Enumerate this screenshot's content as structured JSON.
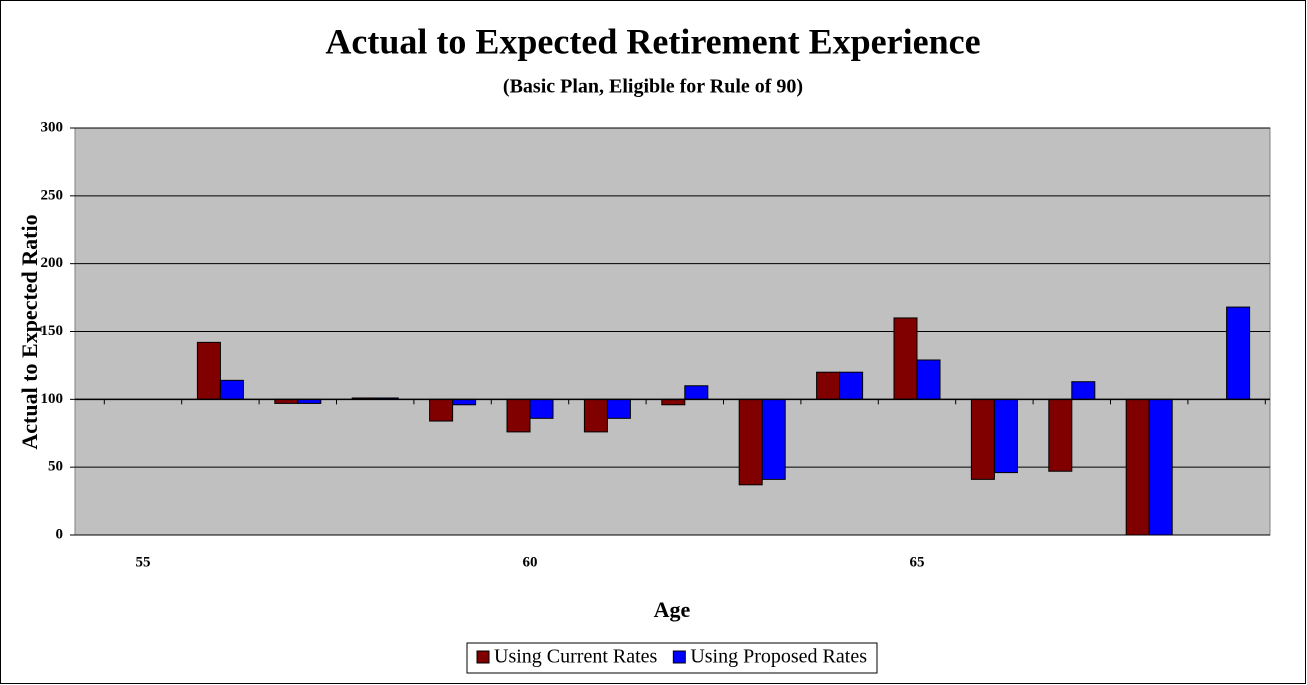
{
  "chart_data": {
    "type": "bar",
    "title": "Actual to Expected Retirement Experience",
    "subtitle": "(Basic Plan, Eligible for Rule of 90)",
    "x_label": "Age",
    "y_label": "Actual to Expected Ratio",
    "categories": [
      "55",
      null,
      null,
      null,
      null,
      "60",
      null,
      null,
      null,
      null,
      "65",
      null,
      null,
      null,
      null
    ],
    "series": [
      {
        "name": "Using Current Rates",
        "color": "#800000",
        "values": [
          null,
          142,
          97,
          101,
          84,
          76,
          76,
          96,
          37,
          120,
          160,
          41,
          47,
          0,
          null
        ]
      },
      {
        "name": "Using Proposed Rates",
        "color": "#0000ff",
        "values": [
          null,
          114,
          97,
          101,
          96,
          86,
          86,
          110,
          41,
          120,
          129,
          46,
          113,
          0,
          168
        ]
      }
    ],
    "ylim": [
      0,
      300
    ],
    "yticks": [
      0,
      50,
      100,
      150,
      200,
      250,
      300
    ],
    "y_axis_crosses": 100,
    "grid": true,
    "legend": "bottom"
  }
}
